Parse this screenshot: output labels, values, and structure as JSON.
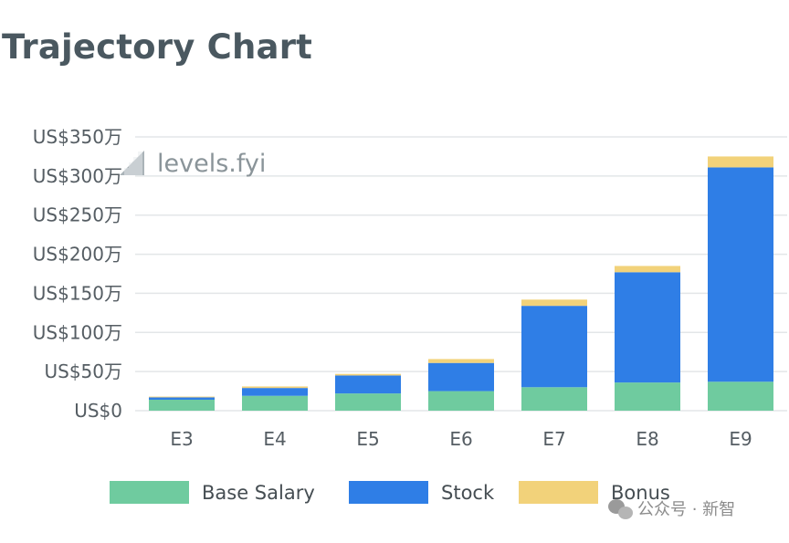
{
  "title": "Trajectory Chart",
  "watermark": "levels.fyi",
  "footer": "公众号 · 新智",
  "chart_data": {
    "type": "bar",
    "stacked": true,
    "categories": [
      "E3",
      "E4",
      "E5",
      "E6",
      "E7",
      "E8",
      "E9"
    ],
    "series": [
      {
        "name": "Base Salary",
        "color": "#6fcb9f",
        "values": [
          14,
          19,
          22,
          25,
          30,
          36,
          37
        ]
      },
      {
        "name": "Stock",
        "color": "#2f7ee6",
        "values": [
          3,
          10,
          23,
          36,
          104,
          141,
          274
        ]
      },
      {
        "name": "Bonus",
        "color": "#f2d27a",
        "values": [
          1,
          2,
          2,
          5,
          8,
          8,
          14
        ]
      }
    ],
    "ylim": [
      0,
      350
    ],
    "yticks": [
      0,
      50,
      100,
      150,
      200,
      250,
      300,
      350
    ],
    "ytick_labels": [
      "US$0",
      "US$50万",
      "US$100万",
      "US$150万",
      "US$200万",
      "US$250万",
      "US$300万",
      "US$350万"
    ],
    "grid": true,
    "legend_position": "bottom"
  }
}
